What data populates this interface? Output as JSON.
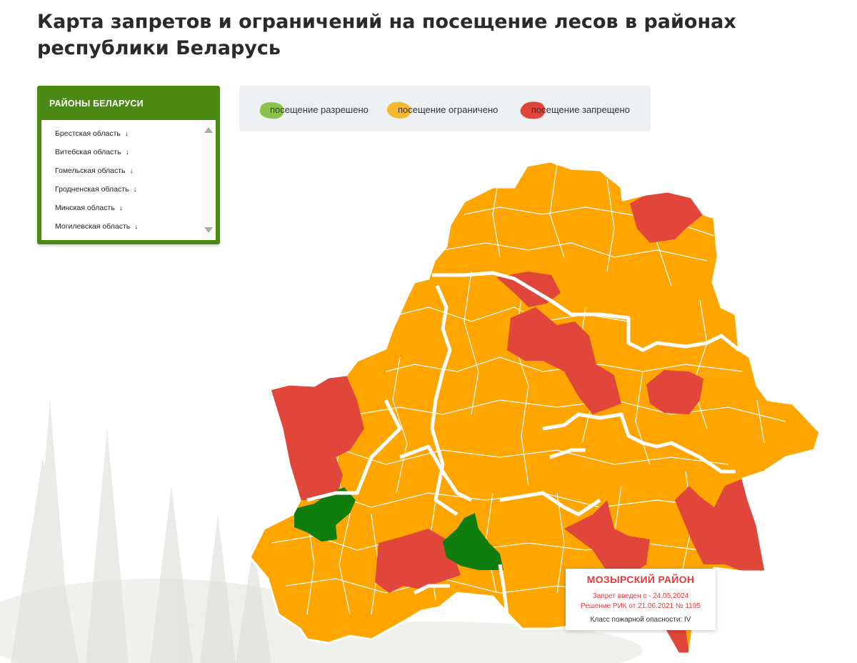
{
  "page": {
    "title": "Карта запретов и ограничений на посещение лесов в районах республики Беларусь"
  },
  "districts_panel": {
    "title": "РАЙОНЫ БЕЛАРУСИ",
    "arrow_glyph": "↓",
    "regions": [
      {
        "label": "Брестская область"
      },
      {
        "label": "Витебская область"
      },
      {
        "label": "Гомельская область"
      },
      {
        "label": "Гродненская область"
      },
      {
        "label": "Минская область"
      },
      {
        "label": "Могилевская область"
      }
    ]
  },
  "legend": {
    "items": [
      {
        "label": "посещение разрешено",
        "color": "#8bc34a"
      },
      {
        "label": "посещение ограничено",
        "color": "#f5b82e"
      },
      {
        "label": "посещение запрещено",
        "color": "#e0443a"
      }
    ]
  },
  "map": {
    "colors": {
      "allowed": "#0f7d0c",
      "limited": "#ffa500",
      "banned": "#e0463a",
      "border": "#ffffff"
    }
  },
  "tooltip": {
    "title": "МОЗЫРСКИЙ РАЙОН",
    "line1": "Запрет введен с - 24.05.2024",
    "line2": "Решение РИК от 21.06.2021 № 1195",
    "line3": "Класс пожарной опасности: IV"
  }
}
